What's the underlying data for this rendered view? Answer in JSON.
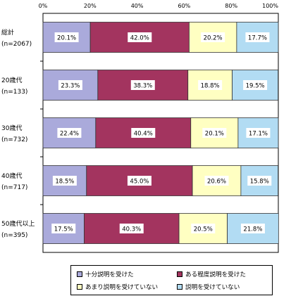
{
  "chart_data": {
    "type": "bar",
    "orientation": "horizontal",
    "stacked": true,
    "xlim": [
      0,
      100
    ],
    "x_ticks": [
      "0%",
      "20%",
      "40%",
      "60%",
      "80%",
      "100%"
    ],
    "categories": [
      {
        "label": "総計",
        "sublabel": "(n=2067)"
      },
      {
        "label": "20歳代",
        "sublabel": "(n=133)"
      },
      {
        "label": "30歳代",
        "sublabel": "(n=732)"
      },
      {
        "label": "40歳代",
        "sublabel": "(n=717)"
      },
      {
        "label": "50歳代以上",
        "sublabel": "(n=395)"
      }
    ],
    "series": [
      {
        "name": "十分説明を受けた",
        "color": "#aaaadb",
        "values": [
          20.1,
          23.3,
          22.4,
          18.5,
          17.5
        ],
        "labels": [
          "20.1%",
          "23.3%",
          "22.4%",
          "18.5%",
          "17.5%"
        ]
      },
      {
        "name": "ある程度説明を受けた",
        "color": "#a3345f",
        "values": [
          42.0,
          38.3,
          40.4,
          45.0,
          40.3
        ],
        "labels": [
          "42.0%",
          "38.3%",
          "40.4%",
          "45.0%",
          "40.3%"
        ]
      },
      {
        "name": "あまり説明を受けていない",
        "color": "#ffffc2",
        "values": [
          20.2,
          18.8,
          20.1,
          20.6,
          20.5
        ],
        "labels": [
          "20.2%",
          "18.8%",
          "20.1%",
          "20.6%",
          "20.5%"
        ]
      },
      {
        "name": "説明を受けていない",
        "color": "#b2dcf3",
        "values": [
          17.7,
          19.5,
          17.1,
          15.8,
          21.8
        ],
        "labels": [
          "17.7%",
          "19.5%",
          "17.1%",
          "15.8%",
          "21.8%"
        ]
      }
    ],
    "grid": false,
    "legend_position": "bottom"
  }
}
